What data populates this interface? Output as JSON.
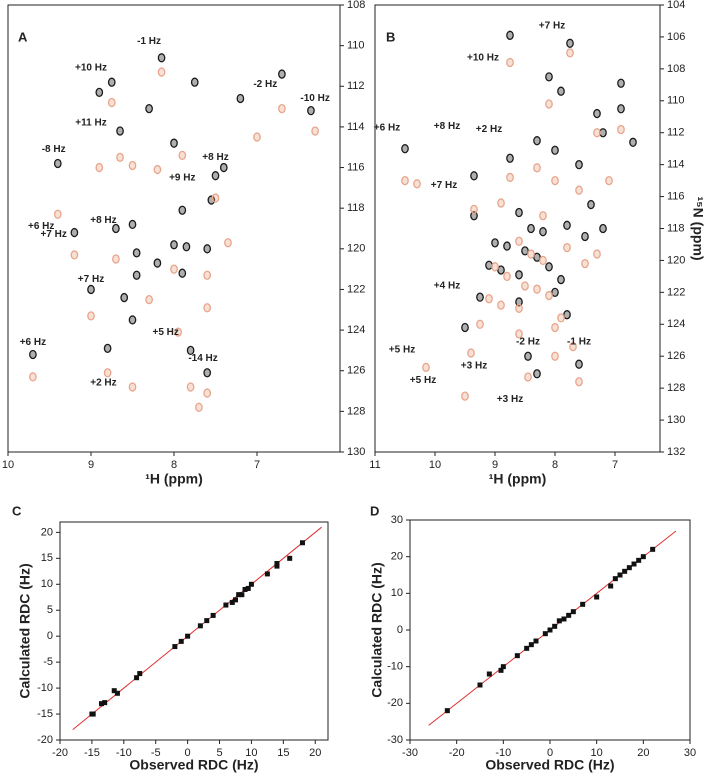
{
  "chart_data": [
    {
      "type": "scatter",
      "label": "A",
      "x_label": "¹H (ppm)",
      "y_axis_side": "right",
      "marker": "contour",
      "xlim": [
        10,
        6
      ],
      "ylim": [
        130,
        108
      ],
      "xticks": [
        10,
        9,
        8,
        7
      ],
      "yticks": [
        108,
        110,
        112,
        114,
        116,
        118,
        120,
        122,
        124,
        126,
        128,
        130
      ],
      "series": [
        {
          "color": "#1a1a1a",
          "x": [
            8.15,
            8.75,
            7.75,
            6.7,
            8.65,
            9.4,
            6.35,
            7.4,
            7.5,
            9.2,
            8.7,
            8.5,
            8.0,
            7.85,
            7.6,
            8.2,
            7.9,
            9.0,
            8.45,
            8.6,
            8.5,
            7.8,
            9.7,
            8.8,
            7.6,
            7.9,
            7.55,
            8.9,
            8.3,
            7.2,
            8.0,
            8.45
          ],
          "values": [
            110.6,
            111.8,
            111.8,
            111.4,
            114.2,
            115.8,
            113.2,
            116.0,
            116.4,
            119.2,
            119.0,
            118.8,
            119.8,
            119.9,
            120.0,
            120.7,
            121.2,
            122.0,
            121.3,
            122.4,
            123.5,
            125.0,
            125.2,
            124.9,
            126.1,
            118.1,
            117.6,
            112.3,
            113.1,
            112.6,
            114.8,
            120.2
          ]
        },
        {
          "color": "#e8a58a",
          "x": [
            8.15,
            8.75,
            6.7,
            6.3,
            8.65,
            9.4,
            7.5,
            9.2,
            8.7,
            8.0,
            7.6,
            9.0,
            7.8,
            9.7,
            8.8,
            7.6,
            8.9,
            8.5,
            8.2,
            7.9,
            7.0,
            7.6,
            8.3,
            7.35,
            7.95,
            8.5,
            7.7
          ],
          "values": [
            111.3,
            112.8,
            113.1,
            114.2,
            115.5,
            118.3,
            117.5,
            120.3,
            120.5,
            121.0,
            121.3,
            123.3,
            126.8,
            126.3,
            126.1,
            127.1,
            116.0,
            115.9,
            116.1,
            115.4,
            114.5,
            122.9,
            122.5,
            119.7,
            124.1,
            126.8,
            127.8
          ]
        }
      ],
      "annotations": [
        {
          "text": "-1 Hz",
          "x": 8.3,
          "y": 109.8
        },
        {
          "text": "-2 Hz",
          "x": 6.9,
          "y": 111.9
        },
        {
          "text": "-10 Hz",
          "x": 6.3,
          "y": 112.6
        },
        {
          "text": "+10 Hz",
          "x": 9.0,
          "y": 111.1
        },
        {
          "text": "+11 Hz",
          "x": 9.0,
          "y": 113.8
        },
        {
          "text": "-8 Hz",
          "x": 9.45,
          "y": 115.1
        },
        {
          "text": "+8 Hz",
          "x": 7.5,
          "y": 115.5
        },
        {
          "text": "+9 Hz",
          "x": 7.9,
          "y": 116.5
        },
        {
          "text": "+6 Hz",
          "x": 9.6,
          "y": 118.9
        },
        {
          "text": "+8 Hz",
          "x": 8.85,
          "y": 118.6
        },
        {
          "text": "+7 Hz",
          "x": 9.45,
          "y": 119.3
        },
        {
          "text": "+7 Hz",
          "x": 9.0,
          "y": 121.5
        },
        {
          "text": "+5 Hz",
          "x": 8.1,
          "y": 124.1
        },
        {
          "text": "+6 Hz",
          "x": 9.7,
          "y": 124.6
        },
        {
          "text": "-14 Hz",
          "x": 7.65,
          "y": 125.4
        },
        {
          "text": "+2 Hz",
          "x": 8.85,
          "y": 126.6
        }
      ]
    },
    {
      "type": "scatter",
      "label": "B",
      "x_label": "¹H (ppm)",
      "y_label": "¹⁵N (ppm)",
      "y_axis_side": "right",
      "marker": "contour",
      "xlim": [
        11,
        6.25
      ],
      "ylim": [
        132,
        104
      ],
      "xticks": [
        11,
        10,
        9,
        8,
        7
      ],
      "yticks": [
        104,
        106,
        108,
        110,
        112,
        114,
        116,
        118,
        120,
        122,
        124,
        126,
        128,
        130,
        132
      ],
      "series": [
        {
          "color": "#1a1a1a",
          "x": [
            8.75,
            7.75,
            8.1,
            7.9,
            7.3,
            10.5,
            9.35,
            8.75,
            9.35,
            8.3,
            8.0,
            7.6,
            7.2,
            6.9,
            8.6,
            8.4,
            8.2,
            9.0,
            8.8,
            8.5,
            8.3,
            7.8,
            7.5,
            9.1,
            8.9,
            8.6,
            8.1,
            7.9,
            7.2,
            9.25,
            8.6,
            8.0,
            7.8,
            9.5,
            8.45,
            7.6,
            8.3,
            7.4,
            6.7,
            6.9
          ],
          "values": [
            105.9,
            106.4,
            108.5,
            109.4,
            110.8,
            113.0,
            114.7,
            113.6,
            117.2,
            112.5,
            113.1,
            114.0,
            112.0,
            110.5,
            117.0,
            118.0,
            118.2,
            118.9,
            119.1,
            119.4,
            119.8,
            117.8,
            118.5,
            120.3,
            120.6,
            120.9,
            120.4,
            121.2,
            118.0,
            122.3,
            122.6,
            122.0,
            123.4,
            124.2,
            126.0,
            126.5,
            127.1,
            116.5,
            112.6,
            108.9
          ]
        },
        {
          "color": "#e8a58a",
          "x": [
            8.75,
            7.75,
            8.1,
            7.3,
            10.5,
            10.3,
            9.35,
            8.75,
            8.3,
            8.0,
            7.6,
            6.9,
            8.6,
            8.4,
            8.2,
            9.0,
            8.8,
            8.5,
            8.3,
            7.8,
            7.5,
            9.1,
            8.9,
            8.6,
            8.1,
            7.9,
            7.3,
            9.25,
            8.6,
            8.0,
            7.7,
            9.5,
            10.15,
            8.45,
            7.6,
            9.4,
            8.2,
            7.1,
            8.9,
            8.0
          ],
          "values": [
            107.6,
            107.0,
            110.2,
            112.0,
            115.0,
            115.2,
            116.8,
            114.8,
            114.2,
            115.0,
            115.6,
            111.8,
            118.8,
            119.6,
            120.0,
            120.4,
            121.0,
            121.6,
            121.8,
            119.2,
            120.2,
            122.4,
            122.8,
            123.0,
            122.2,
            123.6,
            119.6,
            124.0,
            124.6,
            124.2,
            125.4,
            128.5,
            126.7,
            127.3,
            127.6,
            125.8,
            117.2,
            115.0,
            116.4,
            126.0
          ]
        }
      ],
      "annotations": [
        {
          "text": "+7 Hz",
          "x": 8.05,
          "y": 105.3
        },
        {
          "text": "+10 Hz",
          "x": 9.2,
          "y": 107.3
        },
        {
          "text": "+6 Hz",
          "x": 10.8,
          "y": 111.7
        },
        {
          "text": "+8 Hz",
          "x": 9.8,
          "y": 111.6
        },
        {
          "text": "+2 Hz",
          "x": 9.1,
          "y": 111.8
        },
        {
          "text": "+7 Hz",
          "x": 9.85,
          "y": 115.3
        },
        {
          "text": "+4 Hz",
          "x": 9.8,
          "y": 121.6
        },
        {
          "text": "+5 Hz",
          "x": 10.55,
          "y": 125.6
        },
        {
          "text": "-2 Hz",
          "x": 8.45,
          "y": 125.1
        },
        {
          "text": "-1 Hz",
          "x": 7.6,
          "y": 125.1
        },
        {
          "text": "+3 Hz",
          "x": 9.35,
          "y": 126.6
        },
        {
          "text": "+5 Hz",
          "x": 10.2,
          "y": 127.5
        },
        {
          "text": "+3 Hz",
          "x": 8.75,
          "y": 128.7
        }
      ]
    },
    {
      "type": "scatter",
      "label": "C",
      "x_label": "Observed RDC (Hz)",
      "y_label": "Calculated RDC (Hz)",
      "y_axis_side": "left",
      "marker": "square",
      "xlim": [
        -20,
        22
      ],
      "ylim": [
        -20,
        22
      ],
      "xticks": [
        -20,
        -15,
        -10,
        -5,
        0,
        5,
        10,
        15,
        20
      ],
      "yticks": [
        -20,
        -15,
        -10,
        -5,
        0,
        5,
        10,
        15,
        20
      ],
      "series": [
        {
          "color": "#e03030",
          "line": true,
          "x": [
            -18,
            21
          ],
          "values": [
            -18,
            21
          ]
        },
        {
          "color": "#111111",
          "x": [
            -15,
            -14.8,
            -13.5,
            -13,
            -11.5,
            -11,
            -8,
            -7.5,
            -2,
            -1,
            0,
            2,
            3,
            4,
            6,
            7,
            7.5,
            8,
            8.5,
            9,
            9.5,
            10,
            12.5,
            14,
            14,
            16,
            18
          ],
          "values": [
            -15,
            -15,
            -13,
            -12.8,
            -10.5,
            -11,
            -8,
            -7.2,
            -2,
            -1,
            0,
            2,
            3,
            4,
            6,
            6.5,
            7,
            8,
            8,
            9,
            9.2,
            10,
            12,
            13.5,
            14,
            15,
            18
          ]
        }
      ]
    },
    {
      "type": "scatter",
      "label": "D",
      "x_label": "Observed RDC (Hz)",
      "y_label": "Calculated RDC (Hz)",
      "y_axis_side": "left",
      "marker": "square",
      "xlim": [
        -30,
        30
      ],
      "ylim": [
        -30,
        30
      ],
      "xticks": [
        -30,
        -20,
        -10,
        0,
        10,
        20,
        30
      ],
      "yticks": [
        -30,
        -20,
        -10,
        0,
        10,
        20,
        30
      ],
      "series": [
        {
          "color": "#e03030",
          "line": true,
          "x": [
            -26,
            27
          ],
          "values": [
            -26,
            27
          ]
        },
        {
          "color": "#111111",
          "x": [
            -22,
            -15,
            -13,
            -10.5,
            -10,
            -7,
            -5,
            -4,
            -3,
            -1,
            0,
            1,
            2,
            3,
            4,
            5,
            7,
            10,
            13,
            14,
            15,
            16,
            17,
            18,
            19,
            20,
            22
          ],
          "values": [
            -22,
            -15,
            -12,
            -11,
            -10,
            -7,
            -5,
            -4,
            -3,
            -1,
            0,
            1,
            2.5,
            3,
            4,
            5,
            7,
            9,
            12,
            14,
            15,
            16,
            17,
            18,
            19,
            20,
            22
          ]
        }
      ]
    }
  ]
}
